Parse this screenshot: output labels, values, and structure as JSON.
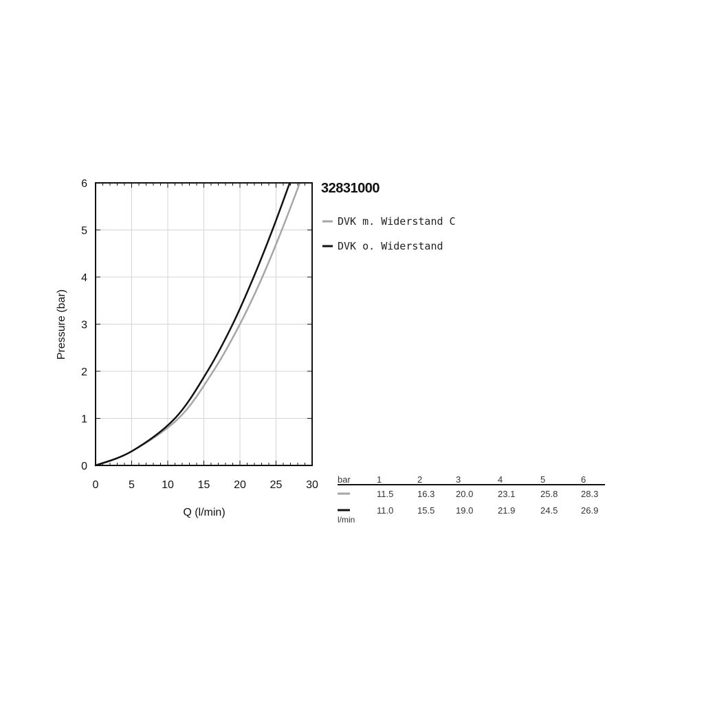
{
  "chart_data": {
    "type": "line",
    "title": "32831000",
    "xlabel": "Q (l/min)",
    "ylabel": "Pressure (bar)",
    "xlim": [
      0,
      30
    ],
    "ylim": [
      0,
      6
    ],
    "x_ticks": [
      "0",
      "5",
      "10",
      "15",
      "20",
      "25",
      "30"
    ],
    "y_ticks": [
      "0",
      "1",
      "2",
      "3",
      "4",
      "5",
      "6"
    ],
    "grid": true,
    "legend_position": "right",
    "series": [
      {
        "name": "DVK m. Widerstand C",
        "color": "#a6a6a6",
        "x": [
          0,
          5,
          11.5,
          16.3,
          20.0,
          23.1,
          25.8,
          28.3
        ],
        "y": [
          0,
          0.3,
          1,
          2,
          3,
          4,
          5,
          6
        ]
      },
      {
        "name": "DVK o. Widerstand",
        "color": "#111111",
        "x": [
          0,
          5,
          11.0,
          15.5,
          19.0,
          21.9,
          24.5,
          26.9
        ],
        "y": [
          0,
          0.3,
          1,
          2,
          3,
          4,
          5,
          6
        ]
      }
    ]
  },
  "table": {
    "header_label": "bar",
    "unit_label": "l/min",
    "columns": [
      "1",
      "2",
      "3",
      "4",
      "5",
      "6"
    ],
    "rows": [
      {
        "color": "#a6a6a6",
        "values": [
          "11.5",
          "16.3",
          "20.0",
          "23.1",
          "25.8",
          "28.3"
        ]
      },
      {
        "color": "#111111",
        "values": [
          "11.0",
          "15.5",
          "19.0",
          "21.9",
          "24.5",
          "26.9"
        ]
      }
    ]
  }
}
